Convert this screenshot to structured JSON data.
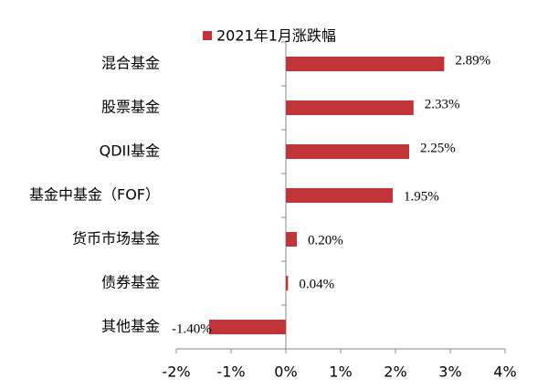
{
  "chart_data": {
    "type": "bar",
    "orientation": "horizontal",
    "categories": [
      "混合基金",
      "股票基金",
      "QDII基金",
      "基金中基金（FOF）",
      "货币市场基金",
      "债券基金",
      "其他基金"
    ],
    "series": [
      {
        "name": "2021年1月涨跌幅",
        "color": "#c0343a",
        "values": [
          2.89,
          2.33,
          2.25,
          1.95,
          0.2,
          0.04,
          -1.4
        ],
        "value_labels": [
          "2.89%",
          "2.33%",
          "2.25%",
          "1.95%",
          "0.20%",
          "0.04%",
          "-1.40%"
        ]
      }
    ],
    "xlim": [
      -2,
      4
    ],
    "xticks": [
      {
        "value": -2,
        "label": "-2%"
      },
      {
        "value": -1,
        "label": "-1%"
      },
      {
        "value": 0,
        "label": "0%"
      },
      {
        "value": 1,
        "label": "1%"
      },
      {
        "value": 2,
        "label": "2%"
      },
      {
        "value": 3,
        "label": "3%"
      },
      {
        "value": 4,
        "label": "4%"
      }
    ],
    "legend": "top",
    "grid": false
  }
}
